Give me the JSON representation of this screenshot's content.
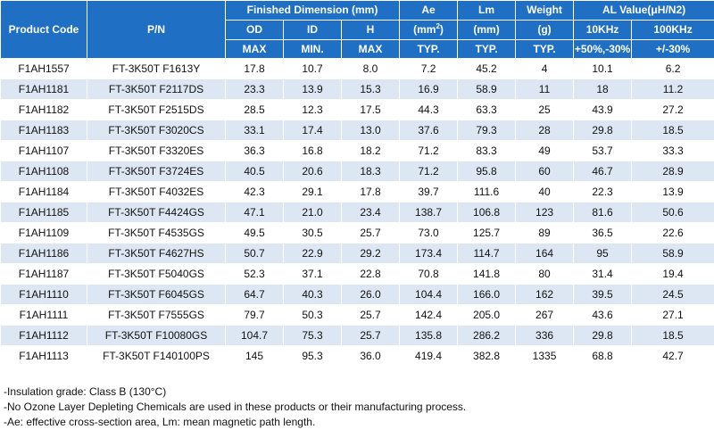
{
  "header": {
    "product_code": "Product Code",
    "pn": "P/N",
    "finished_dimension": "Finished Dimension (mm)",
    "ae": "Ae",
    "lm": "Lm",
    "weight": "Weight",
    "al_value": "AL Value(μH/N2)",
    "od": "OD",
    "id": "ID",
    "h": "H",
    "ae_unit_base": "(mm",
    "ae_unit_exp": "2",
    "ae_unit_close": ")",
    "lm_unit": "(mm)",
    "weight_unit": "(g)",
    "khz10": "10KHz",
    "khz100": "100KHz",
    "od_sub": "MAX",
    "id_sub": "MIN.",
    "h_sub": "MAX",
    "ae_sub": "TYP.",
    "lm_sub": "TYP.",
    "weight_sub": "TYP.",
    "khz10_sub": "+50%,-30%",
    "khz100_sub": "+/-30%"
  },
  "rows": [
    [
      "F1AH1557",
      "FT-3K50T F1613Y",
      "17.8",
      "10.7",
      "8.0",
      "7.2",
      "45.2",
      "4",
      "10.1",
      "6.2"
    ],
    [
      "F1AH1181",
      "FT-3K50T F2117DS",
      "23.3",
      "13.9",
      "15.3",
      "16.9",
      "58.9",
      "11",
      "18",
      "11.2"
    ],
    [
      "F1AH1182",
      "FT-3K50T F2515DS",
      "28.5",
      "12.3",
      "17.5",
      "44.3",
      "63.3",
      "25",
      "43.9",
      "27.2"
    ],
    [
      "F1AH1183",
      "FT-3K50T F3020CS",
      "33.1",
      "17.4",
      "13.0",
      "37.6",
      "79.3",
      "28",
      "29.8",
      "18.5"
    ],
    [
      "F1AH1107",
      "FT-3K50T F3320ES",
      "36.3",
      "16.8",
      "18.2",
      "71.2",
      "83.3",
      "49",
      "53.7",
      "33.3"
    ],
    [
      "F1AH1108",
      "FT-3K50T F3724ES",
      "40.5",
      "20.6",
      "18.3",
      "71.2",
      "95.8",
      "60",
      "46.7",
      "28.9"
    ],
    [
      "F1AH1184",
      "FT-3K50T F4032ES",
      "42.3",
      "29.1",
      "17.8",
      "39.7",
      "111.6",
      "40",
      "22.3",
      "13.9"
    ],
    [
      "F1AH1185",
      "FT-3K50T F4424GS",
      "47.1",
      "21.0",
      "23.4",
      "138.7",
      "106.8",
      "123",
      "81.6",
      "50.6"
    ],
    [
      "F1AH1109",
      "FT-3K50T F4535GS",
      "49.5",
      "30.5",
      "25.7",
      "73.0",
      "125.7",
      "89",
      "36.5",
      "22.6"
    ],
    [
      "F1AH1186",
      "FT-3K50T F4627HS",
      "50.7",
      "22.9",
      "29.2",
      "173.4",
      "114.7",
      "164",
      "95",
      "58.9"
    ],
    [
      "F1AH1187",
      "FT-3K50T F5040GS",
      "52.3",
      "37.1",
      "22.8",
      "70.8",
      "141.8",
      "80",
      "31.4",
      "19.4"
    ],
    [
      "F1AH1110",
      "FT-3K50T F6045GS",
      "64.7",
      "40.3",
      "26.0",
      "104.4",
      "166.0",
      "162",
      "39.5",
      "24.5"
    ],
    [
      "F1AH1111",
      "FT-3K50T F7555GS",
      "79.7",
      "50.3",
      "25.7",
      "142.4",
      "205.0",
      "267",
      "43.6",
      "27.1"
    ],
    [
      "F1AH1112",
      "FT-3K50T F10080GS",
      "104.7",
      "75.3",
      "25.7",
      "135.8",
      "286.2",
      "336",
      "29.8",
      "18.5"
    ],
    [
      "F1AH1113",
      "FT-3K50T F140100PS",
      "145",
      "95.3",
      "36.0",
      "419.4",
      "382.8",
      "1335",
      "68.8",
      "42.7"
    ]
  ],
  "notes": [
    "-Insulation grade: Class B (130°C)",
    "-No Ozone Layer Depleting Chemicals are used in these products or their manufacturing process.",
    "-Ae: effective cross-section area, Lm: mean magnetic path length."
  ],
  "colors": {
    "header_bg": "#1f6fc5",
    "stripe": "#dce7f3"
  }
}
